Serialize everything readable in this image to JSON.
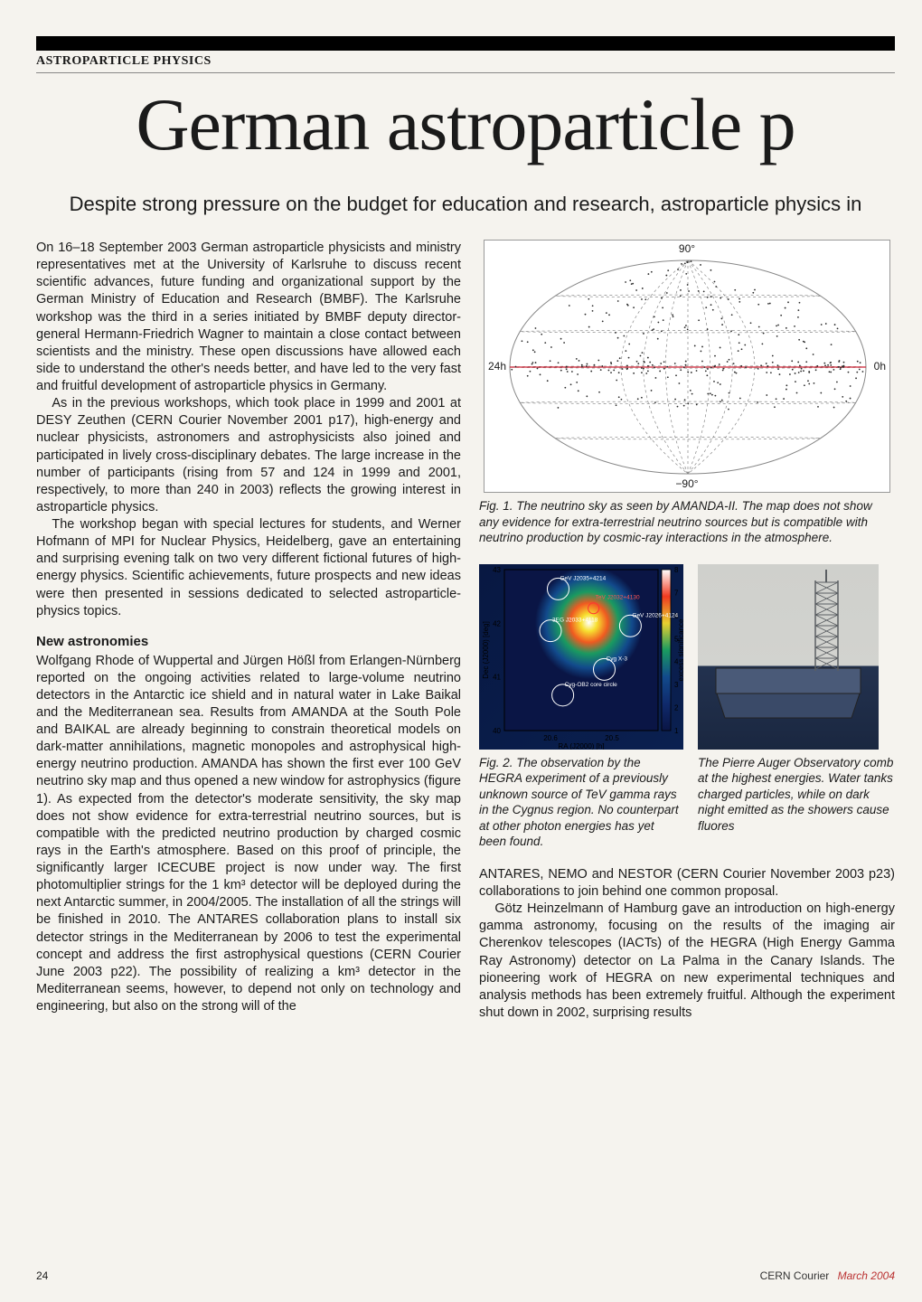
{
  "section_label": "ASTROPARTICLE PHYSICS",
  "headline": "German astroparticle p",
  "subhead": "Despite strong pressure on the budget for education and research, astroparticle physics in",
  "left_column": {
    "p1": "On 16–18 September 2003 German astroparticle physicists and ministry representatives met at the University of Karlsruhe to discuss recent scientific advances, future funding and organizational support by the German Ministry of Education and Research (BMBF). The Karlsruhe workshop was the third in a series initiated by BMBF deputy director-general Hermann-Friedrich Wagner to maintain a close contact between scientists and the ministry. These open discussions have allowed each side to understand the other's needs better, and have led to the very fast and fruitful development of astroparticle physics in Germany.",
    "p2": "As in the previous workshops, which took place in 1999 and 2001 at DESY Zeuthen (CERN Courier November 2001 p17), high-energy and nuclear physicists, astronomers and astrophysicists also joined and participated in lively cross-disciplinary debates. The large increase in the number of participants (rising from 57 and 124 in 1999 and 2001, respectively, to more than 240 in 2003) reflects the growing interest in astroparticle physics.",
    "p3": "The workshop began with special lectures for students, and Werner Hofmann of MPI for Nuclear Physics, Heidelberg, gave an entertaining and surprising evening talk on two very different fictional futures of high-energy physics. Scientific achievements, future prospects and new ideas were then presented in sessions dedicated to selected astroparticle-physics topics.",
    "heading1": "New astronomies",
    "p4": "Wolfgang Rhode of Wuppertal and Jürgen Hößl from Erlangen-Nürnberg reported on the ongoing activities related to large-volume neutrino detectors in the Antarctic ice shield and in natural water in Lake Baikal and the Mediterranean sea. Results from AMANDA at the South Pole and BAIKAL are already beginning to constrain theoretical models on dark-matter annihilations, magnetic monopoles and astrophysical high-energy neutrino production. AMANDA has shown the first ever 100 GeV neutrino sky map and thus opened a new window for astrophysics (figure 1). As expected from the detector's moderate sensitivity, the sky map does not show evidence for extra-terrestrial neutrino sources, but is compatible with the predicted neutrino production by charged cosmic rays in the Earth's atmosphere. Based on this proof of principle, the significantly larger ICECUBE project is now under way. The first photomultiplier strings for the 1 km³ detector will be deployed during the next Antarctic summer, in 2004/2005. The installation of all the strings will be finished in 2010. The ANTARES collaboration plans to install six detector strings in the Mediterranean by 2006 to test the experimental concept and address the first astrophysical questions (CERN Courier June 2003 p22). The possibility of realizing a km³ detector in the Mediterranean seems, however, to depend not only on technology and engineering, but also on the strong will of the"
  },
  "fig1": {
    "caption": "Fig. 1. The neutrino sky as seen by AMANDA-II. The map does not show any evidence for extra-terrestrial neutrino sources but is compatible with neutrino production by cosmic-ray interactions in the atmosphere.",
    "labels": {
      "top": "90°",
      "bottom": "−90°",
      "left": "24h",
      "right": "0h"
    },
    "n_points": 380,
    "point_color": "#2a2a2a",
    "equator_color": "#c23",
    "grid_color": "#888",
    "bg": "#ffffff"
  },
  "fig2": {
    "caption": "Fig. 2. The observation by the HEGRA experiment of a previously unknown source of TeV gamma rays in the Cygnus region. No counterpart at other photon energies has yet been found.",
    "xlabel": "RA (J2000) [h]",
    "ylabel": "Dec (J2000) [deg]",
    "cblabel": "excess significance",
    "xticks": [
      "20.6",
      "20.5"
    ],
    "yticks": [
      "40",
      "41",
      "42",
      "43"
    ],
    "cticks": [
      "1",
      "2",
      "3",
      "4",
      "5",
      "6",
      "7",
      "8"
    ],
    "sources": [
      "GeV J2035+4214",
      "TeV J2032+4130",
      "GeV J2026+4124",
      "3EG J2033+4118",
      "Cyg X-3",
      "Cyg-OB2 core circle"
    ],
    "bg_gradient": [
      "#0a1545",
      "#0f2a6c",
      "#124a8c",
      "#1a9a60",
      "#e8d030",
      "#f03a20",
      "#fff"
    ]
  },
  "fig3": {
    "caption": "The Pierre Auger Observatory comb at the highest energies. Water tanks charged particles, while on dark night emitted as the showers cause fluores",
    "sky_color": "#cfd0cc",
    "ground_color": "#1c2a45",
    "tower_color": "#5a5e62"
  },
  "right_body": {
    "p1": "ANTARES, NEMO and NESTOR (CERN Courier November 2003 p23) collaborations to join behind one common proposal.",
    "p2": "Götz Heinzelmann of Hamburg gave an introduction on high-energy gamma astronomy, focusing on the results of the imaging air Cherenkov telescopes (IACTs) of the HEGRA (High Energy Gamma Ray Astronomy) detector on La Palma in the Canary Islands. The pioneering work of HEGRA on new experimental techniques and analysis methods has been extremely fruitful. Although the experiment shut down in 2002, surprising results"
  },
  "footer": {
    "page": "24",
    "pub": "CERN Courier",
    "issue": "March 2004"
  }
}
